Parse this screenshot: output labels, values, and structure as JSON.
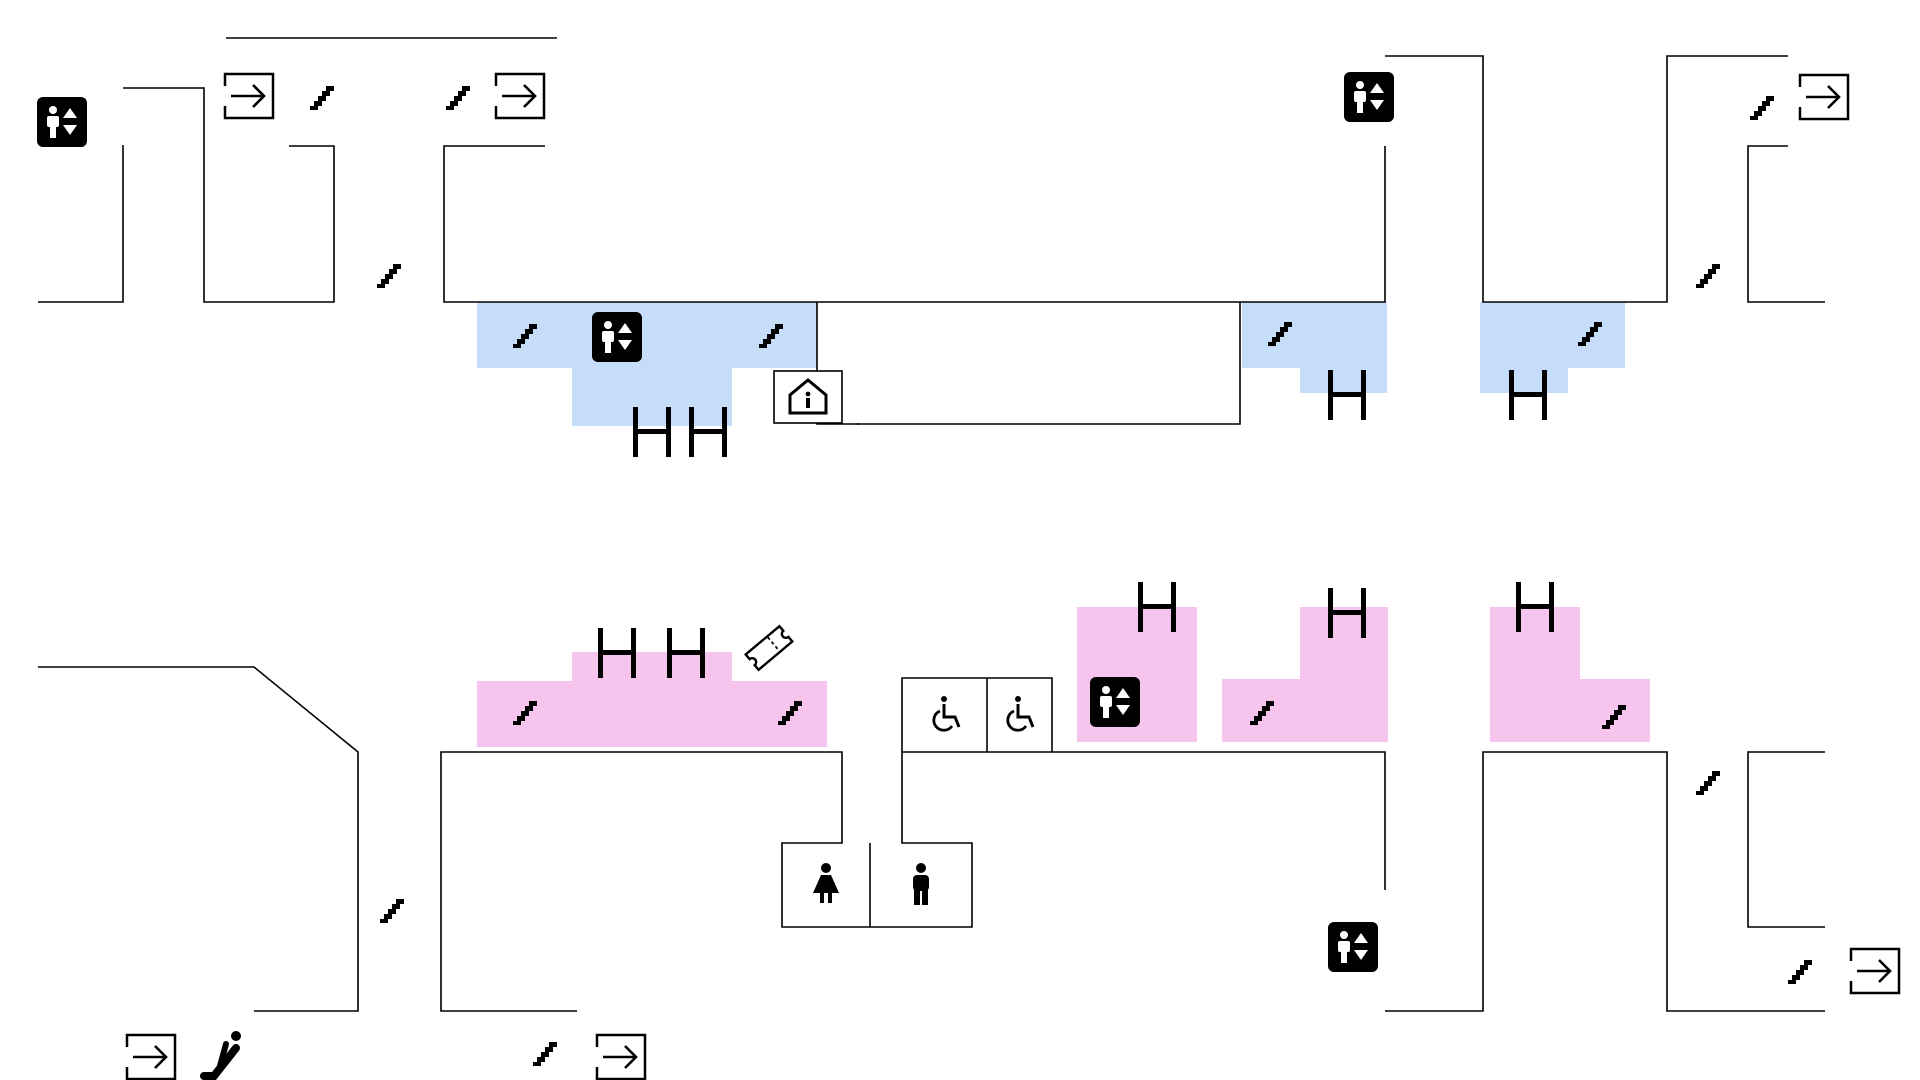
{
  "map": {
    "colors": {
      "background": "#ffffff",
      "walls": "#000000",
      "platform_upper": "#c5ddf9",
      "platform_lower": "#f7c4ee",
      "icons": "#000000"
    },
    "levels": [
      {
        "id": "upper",
        "platform_color": "platform_upper"
      },
      {
        "id": "lower",
        "platform_color": "platform_lower"
      }
    ],
    "legend_icons": [
      "exit-icon",
      "stairs-icon",
      "elevator-icon",
      "escalator-icon",
      "platform-track-icon",
      "information-icon",
      "ticket-icon",
      "wheelchair-toilet-icon",
      "womens-toilet-icon",
      "mens-toilet-icon"
    ]
  }
}
